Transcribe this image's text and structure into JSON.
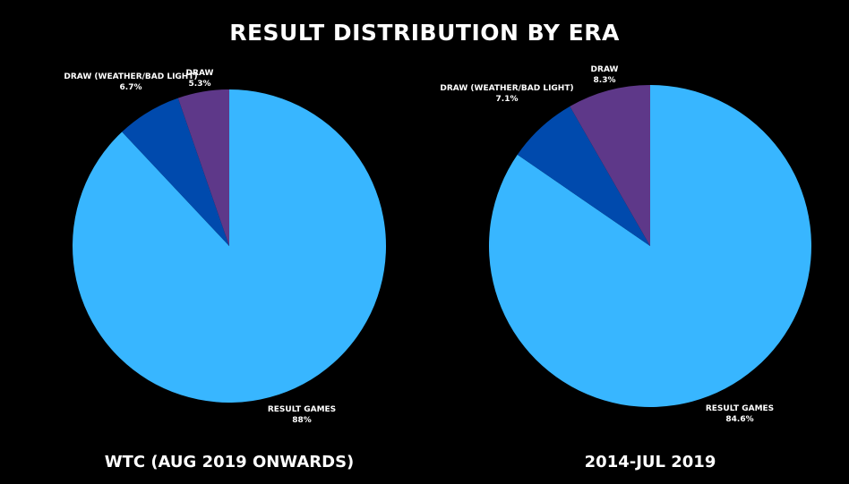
{
  "page_title": "RESULT DISTRIBUTION BY ERA",
  "chart_data": [
    {
      "type": "pie",
      "title": "WTC (AUG 2019 ONWARDS)",
      "slices": [
        {
          "label": "RESULT GAMES",
          "value": 88,
          "value_label": "88%",
          "color": "#38b6ff"
        },
        {
          "label": "DRAW (WEATHER/BAD LIGHT)",
          "value": 6.7,
          "value_label": "6.7%",
          "color": "#004aad"
        },
        {
          "label": "DRAW",
          "value": 5.3,
          "value_label": "5.3%",
          "color": "#5e3889"
        }
      ]
    },
    {
      "type": "pie",
      "title": "2014-JUL 2019",
      "slices": [
        {
          "label": "RESULT GAMES",
          "value": 84.6,
          "value_label": "84.6%",
          "color": "#38b6ff"
        },
        {
          "label": "DRAW (WEATHER/BAD LIGHT)",
          "value": 7.1,
          "value_label": "7.1%",
          "color": "#004aad"
        },
        {
          "label": "DRAW",
          "value": 8.3,
          "value_label": "8.3%",
          "color": "#5e3889"
        }
      ]
    }
  ]
}
